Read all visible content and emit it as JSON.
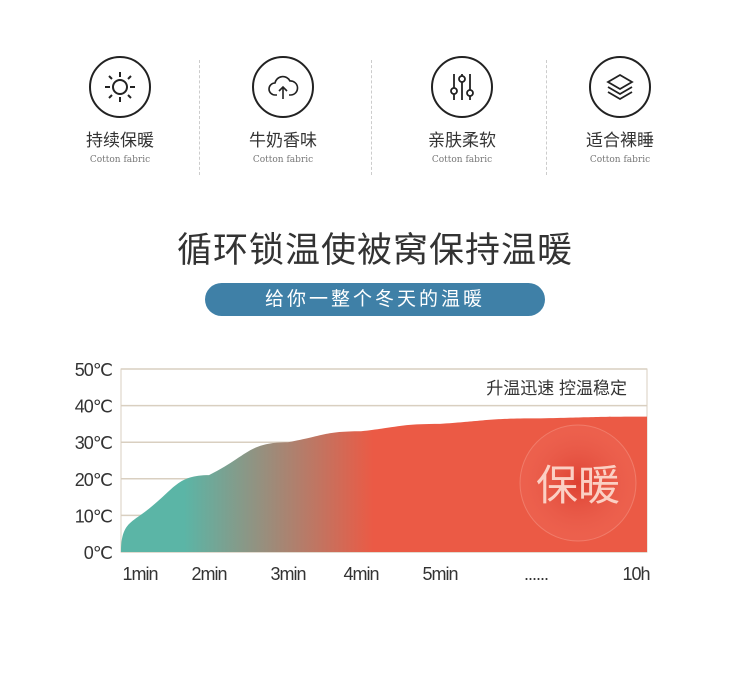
{
  "features": [
    {
      "icon": "sun-icon",
      "title": "持续保暖",
      "subtitle": "Cotton fabric"
    },
    {
      "icon": "cloud-upload-icon",
      "title": "牛奶香味",
      "subtitle": "Cotton fabric"
    },
    {
      "icon": "sliders-icon",
      "title": "亲肤柔软",
      "subtitle": "Cotton fabric"
    },
    {
      "icon": "layers-icon",
      "title": "适合裸睡",
      "subtitle": "Cotton fabric"
    }
  ],
  "headline": "循环锁温使被窝保持温暖",
  "subheadline": "给你一整个冬天的温暖",
  "chart_data": {
    "type": "area",
    "categories": [
      "1min",
      "2min",
      "3min",
      "4min",
      "5min",
      "......",
      "10h"
    ],
    "values": [
      10,
      21,
      30,
      33,
      35,
      36.5,
      37
    ],
    "yticks": [
      "0℃",
      "10℃",
      "20℃",
      "30℃",
      "40℃",
      "50℃"
    ],
    "ylim": [
      0,
      50
    ],
    "annotation": "升温迅速 控温稳定",
    "badge": "保暖",
    "grid": true,
    "colors": {
      "start": "#5bb5a6",
      "end": "#eb5a45",
      "grid": "#d9cfc0"
    }
  }
}
